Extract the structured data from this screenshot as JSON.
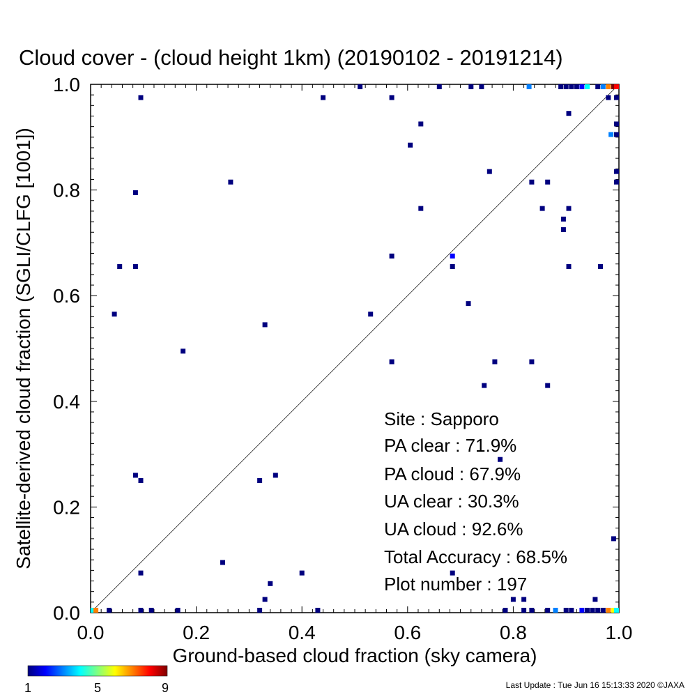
{
  "chart_data": {
    "type": "scatter",
    "title": "Cloud cover - (cloud height 1km)  (20190102 - 20191214)",
    "xlabel": "Ground-based cloud fraction (sky camera)",
    "ylabel": "Satellite-derived cloud fraction (SGLI/CLFG [1001])",
    "xlim": [
      0,
      1
    ],
    "ylim": [
      0,
      1
    ],
    "x_ticks": [
      "0.0",
      "0.2",
      "0.4",
      "0.6",
      "0.8",
      "1.0"
    ],
    "y_ticks": [
      "0.0",
      "0.2",
      "0.4",
      "0.6",
      "0.8",
      "1.0"
    ],
    "grid": false,
    "diagonal_line": true,
    "stats": {
      "site": "Site : Sapporo",
      "pa_clear": "PA clear :  71.9%",
      "pa_cloud": "PA cloud :  67.9%",
      "ua_clear": "UA clear :  30.3%",
      "ua_cloud": "UA cloud :  92.6%",
      "total_accuracy": "Total Accuracy :  68.5%",
      "plot_number": "Plot number :       197"
    },
    "colorbar": {
      "min": 1,
      "max": 9,
      "tick_labels": [
        "1",
        "5",
        "9"
      ],
      "colors": [
        "#00007f",
        "#0000ff",
        "#0080ff",
        "#00ffff",
        "#80ff80",
        "#ffff00",
        "#ff8000",
        "#ff0000",
        "#7f0000"
      ]
    },
    "points": [
      {
        "x": 0.095,
        "y": 0.975,
        "count": 1
      },
      {
        "x": 0.44,
        "y": 0.975,
        "count": 1
      },
      {
        "x": 0.51,
        "y": 1.0,
        "count": 1
      },
      {
        "x": 0.57,
        "y": 0.975,
        "count": 1
      },
      {
        "x": 0.66,
        "y": 1.0,
        "count": 1
      },
      {
        "x": 0.72,
        "y": 1.0,
        "count": 1
      },
      {
        "x": 0.74,
        "y": 1.0,
        "count": 1
      },
      {
        "x": 0.83,
        "y": 1.0,
        "count": 3
      },
      {
        "x": 0.89,
        "y": 1.0,
        "count": 1
      },
      {
        "x": 0.9,
        "y": 1.0,
        "count": 1
      },
      {
        "x": 0.91,
        "y": 1.0,
        "count": 1
      },
      {
        "x": 0.92,
        "y": 1.0,
        "count": 1
      },
      {
        "x": 0.93,
        "y": 1.0,
        "count": 2
      },
      {
        "x": 0.94,
        "y": 1.0,
        "count": 4
      },
      {
        "x": 0.96,
        "y": 1.0,
        "count": 1
      },
      {
        "x": 0.97,
        "y": 1.0,
        "count": 3
      },
      {
        "x": 0.98,
        "y": 1.0,
        "count": 7
      },
      {
        "x": 0.99,
        "y": 1.0,
        "count": 9
      },
      {
        "x": 1.0,
        "y": 1.0,
        "count": 8
      },
      {
        "x": 0.98,
        "y": 0.975,
        "count": 1
      },
      {
        "x": 1.0,
        "y": 0.975,
        "count": 1
      },
      {
        "x": 0.905,
        "y": 0.945,
        "count": 1
      },
      {
        "x": 0.625,
        "y": 0.925,
        "count": 1
      },
      {
        "x": 1.0,
        "y": 0.925,
        "count": 1
      },
      {
        "x": 0.985,
        "y": 0.905,
        "count": 3
      },
      {
        "x": 1.0,
        "y": 0.905,
        "count": 1
      },
      {
        "x": 0.605,
        "y": 0.885,
        "count": 1
      },
      {
        "x": 0.755,
        "y": 0.835,
        "count": 1
      },
      {
        "x": 1.0,
        "y": 0.835,
        "count": 1
      },
      {
        "x": 0.265,
        "y": 0.815,
        "count": 1
      },
      {
        "x": 0.835,
        "y": 0.815,
        "count": 1
      },
      {
        "x": 0.865,
        "y": 0.815,
        "count": 1
      },
      {
        "x": 1.0,
        "y": 0.815,
        "count": 1
      },
      {
        "x": 0.085,
        "y": 0.795,
        "count": 1
      },
      {
        "x": 0.625,
        "y": 0.765,
        "count": 1
      },
      {
        "x": 0.855,
        "y": 0.765,
        "count": 1
      },
      {
        "x": 0.905,
        "y": 0.765,
        "count": 1
      },
      {
        "x": 0.895,
        "y": 0.745,
        "count": 1
      },
      {
        "x": 0.895,
        "y": 0.725,
        "count": 1
      },
      {
        "x": 0.57,
        "y": 0.675,
        "count": 1
      },
      {
        "x": 0.685,
        "y": 0.675,
        "count": 2
      },
      {
        "x": 0.055,
        "y": 0.655,
        "count": 1
      },
      {
        "x": 0.085,
        "y": 0.655,
        "count": 1
      },
      {
        "x": 0.685,
        "y": 0.655,
        "count": 1
      },
      {
        "x": 0.905,
        "y": 0.655,
        "count": 1
      },
      {
        "x": 0.965,
        "y": 0.655,
        "count": 1
      },
      {
        "x": 0.715,
        "y": 0.585,
        "count": 1
      },
      {
        "x": 0.045,
        "y": 0.565,
        "count": 1
      },
      {
        "x": 0.53,
        "y": 0.565,
        "count": 1
      },
      {
        "x": 0.33,
        "y": 0.545,
        "count": 1
      },
      {
        "x": 0.175,
        "y": 0.495,
        "count": 1
      },
      {
        "x": 0.57,
        "y": 0.475,
        "count": 1
      },
      {
        "x": 0.765,
        "y": 0.475,
        "count": 1
      },
      {
        "x": 0.835,
        "y": 0.475,
        "count": 1
      },
      {
        "x": 0.745,
        "y": 0.43,
        "count": 1
      },
      {
        "x": 0.865,
        "y": 0.43,
        "count": 1
      },
      {
        "x": 0.775,
        "y": 0.29,
        "count": 1
      },
      {
        "x": 0.085,
        "y": 0.26,
        "count": 1
      },
      {
        "x": 0.35,
        "y": 0.26,
        "count": 1
      },
      {
        "x": 0.095,
        "y": 0.25,
        "count": 1
      },
      {
        "x": 0.32,
        "y": 0.25,
        "count": 1
      },
      {
        "x": 0.99,
        "y": 0.14,
        "count": 1
      },
      {
        "x": 0.25,
        "y": 0.095,
        "count": 1
      },
      {
        "x": 0.095,
        "y": 0.075,
        "count": 1
      },
      {
        "x": 0.4,
        "y": 0.075,
        "count": 1
      },
      {
        "x": 0.685,
        "y": 0.075,
        "count": 1
      },
      {
        "x": 0.34,
        "y": 0.055,
        "count": 1
      },
      {
        "x": 0.33,
        "y": 0.025,
        "count": 1
      },
      {
        "x": 0.8,
        "y": 0.025,
        "count": 1
      },
      {
        "x": 0.82,
        "y": 0.025,
        "count": 1
      },
      {
        "x": 0.955,
        "y": 0.025,
        "count": 1
      },
      {
        "x": 0.0,
        "y": 0.0,
        "count": 4
      },
      {
        "x": 0.01,
        "y": 0.0,
        "count": 7
      },
      {
        "x": 0.035,
        "y": 0.0,
        "count": 1
      },
      {
        "x": 0.095,
        "y": 0.0,
        "count": 1
      },
      {
        "x": 0.115,
        "y": 0.0,
        "count": 1
      },
      {
        "x": 0.165,
        "y": 0.0,
        "count": 1
      },
      {
        "x": 0.32,
        "y": 0.0,
        "count": 1
      },
      {
        "x": 0.43,
        "y": 0.0,
        "count": 1
      },
      {
        "x": 0.785,
        "y": 0.0,
        "count": 1
      },
      {
        "x": 0.82,
        "y": 0.0,
        "count": 1
      },
      {
        "x": 0.835,
        "y": 0.0,
        "count": 1
      },
      {
        "x": 0.865,
        "y": 0.0,
        "count": 1
      },
      {
        "x": 0.88,
        "y": 0.0,
        "count": 3
      },
      {
        "x": 0.9,
        "y": 0.0,
        "count": 1
      },
      {
        "x": 0.91,
        "y": 0.0,
        "count": 1
      },
      {
        "x": 0.93,
        "y": 0.0,
        "count": 2
      },
      {
        "x": 0.94,
        "y": 0.0,
        "count": 1
      },
      {
        "x": 0.95,
        "y": 0.0,
        "count": 1
      },
      {
        "x": 0.96,
        "y": 0.0,
        "count": 1
      },
      {
        "x": 0.97,
        "y": 0.0,
        "count": 1
      },
      {
        "x": 0.98,
        "y": 0.0,
        "count": 7
      },
      {
        "x": 0.99,
        "y": 0.0,
        "count": 6
      },
      {
        "x": 1.0,
        "y": 0.0,
        "count": 4
      }
    ]
  },
  "footer": {
    "last_update": "Last Update : Tue Jun 16 15:13:33 2020  ©JAXA"
  }
}
